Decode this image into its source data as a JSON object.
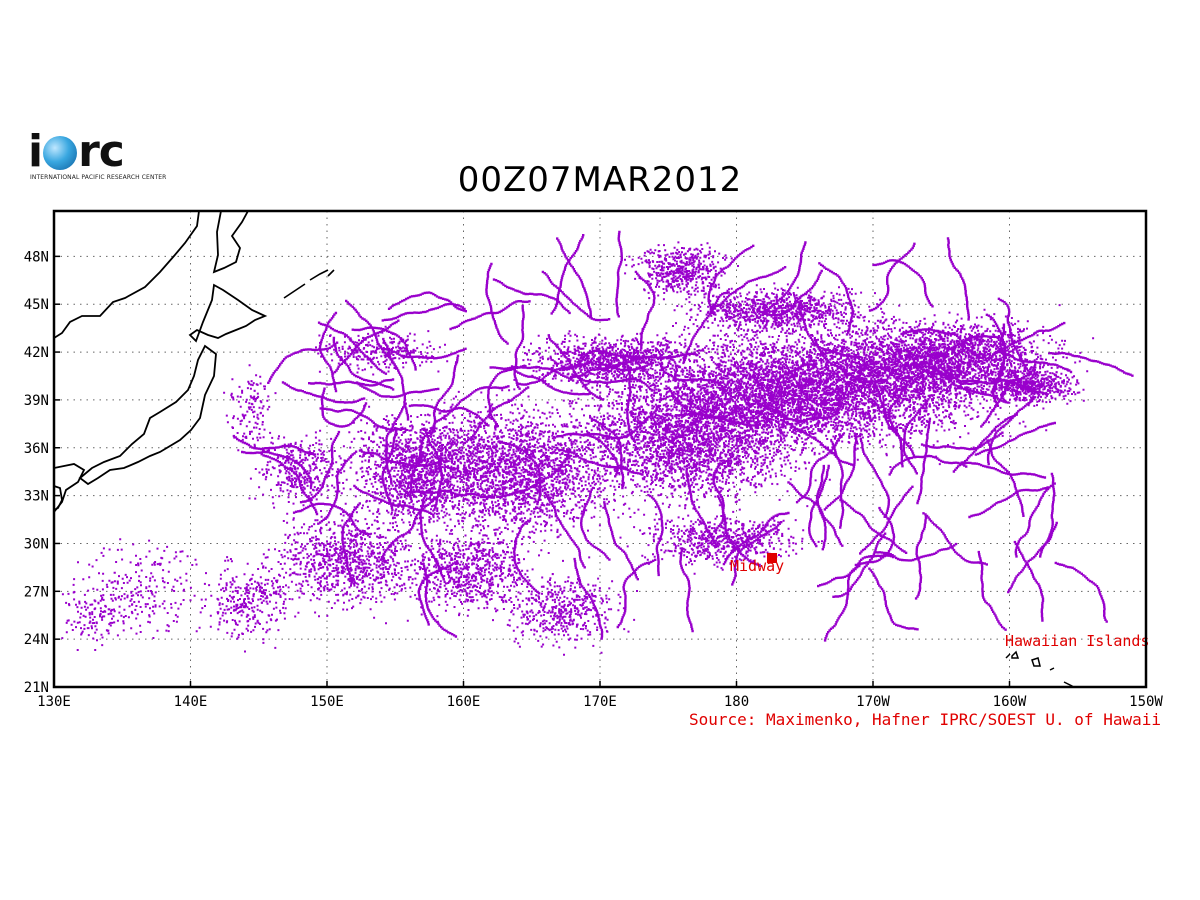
{
  "logo": {
    "word_left": "i",
    "word_right": "rc",
    "subtitle": "INTERNATIONAL PACIFIC RESEARCH CENTER"
  },
  "title": "00Z07MAR2012",
  "axes": {
    "x_ticks": [
      "130E",
      "140E",
      "150E",
      "160E",
      "170E",
      "180",
      "170W",
      "160W",
      "150W"
    ],
    "y_ticks": [
      "21N",
      "24N",
      "27N",
      "30N",
      "33N",
      "36N",
      "39N",
      "42N",
      "45N",
      "48N"
    ]
  },
  "labels": {
    "midway": "Midway",
    "hawaii": "Hawaiian Islands"
  },
  "source": "Source: Maximenko, Hafner IPRC/SOEST U. of Hawaii",
  "colors": {
    "debris": "#9900cc",
    "label_red": "#e00000",
    "coast": "#000000"
  }
}
